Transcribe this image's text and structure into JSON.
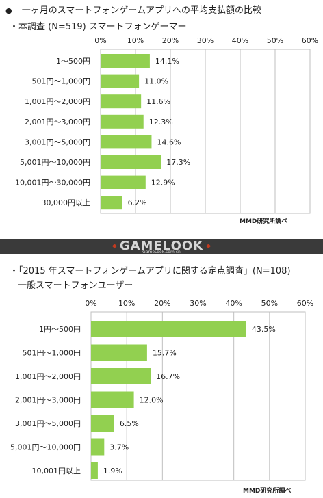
{
  "header": {
    "bullet": "●",
    "title": "一ヶ月のスマートフォンゲームアプリへの平均支払額の比較"
  },
  "logo": {
    "main": "GAMELOOK",
    "sub": "GameLook.com.cn"
  },
  "chart_data": [
    {
      "type": "bar",
      "orientation": "horizontal",
      "title": "・本調査 (N=519) スマートフォンゲーマー",
      "categories": [
        "1～500円",
        "501円～1,000円",
        "1,001円～2,000円",
        "2,001円～3,000円",
        "3,001円～5,000円",
        "5,001円～10,000円",
        "10,001円～30,000円",
        "30,000円以上"
      ],
      "values": [
        14.1,
        11.0,
        11.6,
        12.3,
        14.6,
        17.3,
        12.9,
        6.2
      ],
      "value_labels": [
        "14.1%",
        "11.0%",
        "11.6%",
        "12.3%",
        "14.6%",
        "17.3%",
        "12.9%",
        "6.2%"
      ],
      "xlim": [
        0,
        60
      ],
      "x_ticks": [
        "0%",
        "10%",
        "20%",
        "30%",
        "40%",
        "50%",
        "60%"
      ],
      "grid": true,
      "bar_color": "#92d050",
      "source": "MMD研究所調べ"
    },
    {
      "type": "bar",
      "orientation": "horizontal",
      "title_line1": "・「2015 年スマートフォンゲームアプリに関する定点調査」(N=108)",
      "title_line2": "一般スマートフォンユーザー",
      "categories": [
        "1円～500円",
        "501円～1,000円",
        "1,001円～2,000円",
        "2,001円～3,000円",
        "3,001円～5,000円",
        "5,001円～10,000円",
        "10,001円以上"
      ],
      "values": [
        43.5,
        15.7,
        16.7,
        12.0,
        6.5,
        3.7,
        1.9
      ],
      "value_labels": [
        "43.5%",
        "15.7%",
        "16.7%",
        "12.0%",
        "6.5%",
        "3.7%",
        "1.9%"
      ],
      "xlim": [
        0,
        60
      ],
      "x_ticks": [
        "0%",
        "10%",
        "20%",
        "30%",
        "40%",
        "50%",
        "60%"
      ],
      "grid": true,
      "bar_color": "#92d050",
      "source": "MMD研究所調べ"
    }
  ]
}
